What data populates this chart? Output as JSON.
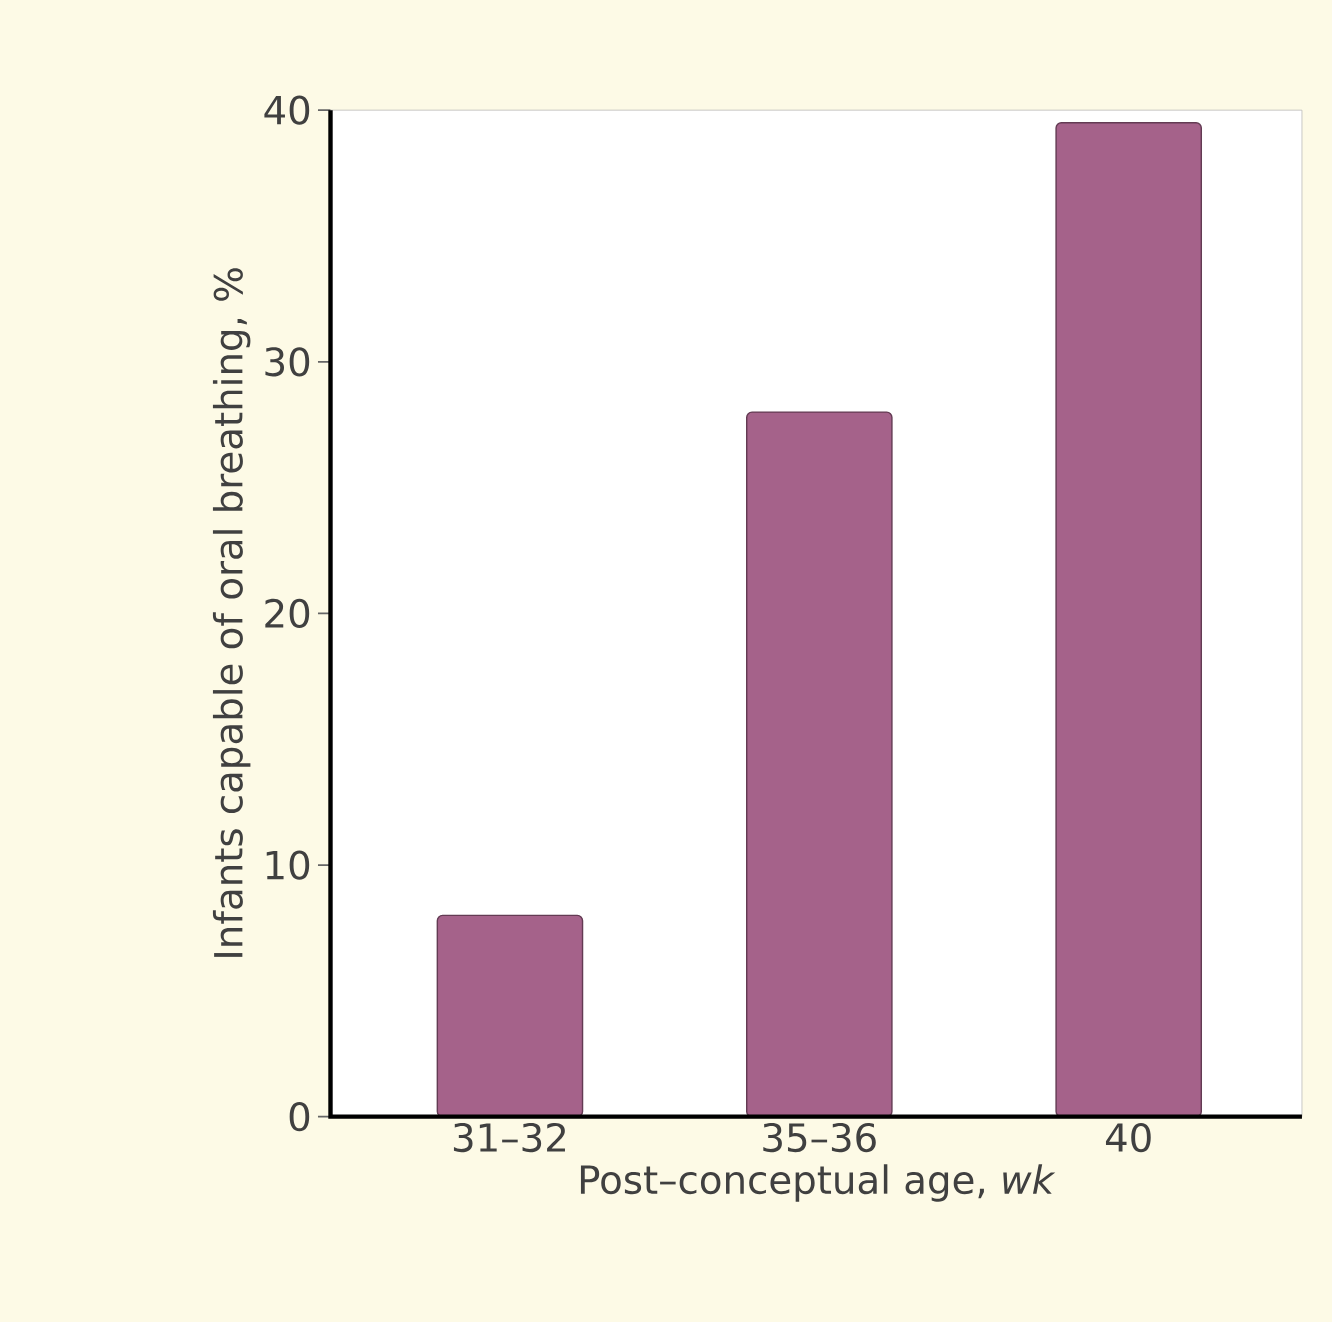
{
  "chart_data": {
    "type": "bar",
    "xlabel": "Post–conceptual age, *wk*",
    "ylabel": "Infants capable of oral breathing, %",
    "categories": [
      "31–32",
      "35–36",
      "40"
    ],
    "values": [
      8,
      28,
      39.5
    ],
    "color": "#a5628a",
    "ylim": [
      0,
      40
    ],
    "yticks": [
      0,
      10,
      20,
      30,
      40
    ],
    "grid": false
  }
}
